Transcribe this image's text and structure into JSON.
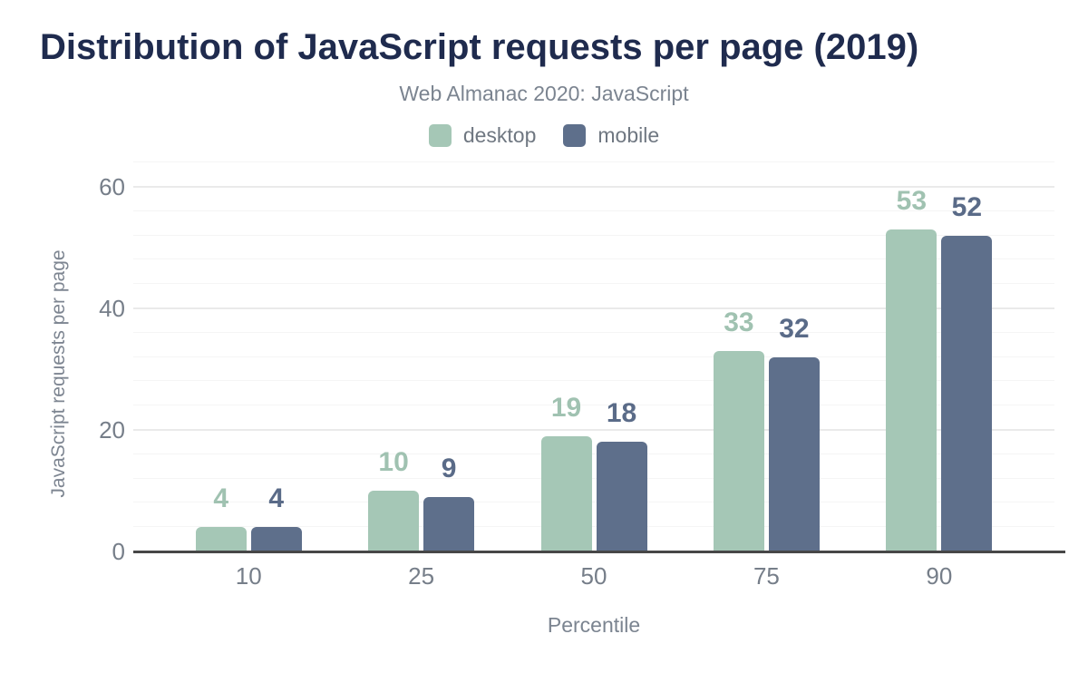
{
  "title": "Distribution of JavaScript requests per page (2019)",
  "subtitle": "Web Almanac 2020: JavaScript",
  "chart_data": {
    "type": "bar",
    "title": "Distribution of JavaScript requests per page (2019)",
    "subtitle": "Web Almanac 2020: JavaScript",
    "categories": [
      "10",
      "25",
      "50",
      "75",
      "90"
    ],
    "series": [
      {
        "name": "desktop",
        "color": "#a5c7b6",
        "label_color": "#a0c2b1",
        "values": [
          4,
          10,
          19,
          33,
          53
        ]
      },
      {
        "name": "mobile",
        "color": "#5e6f8b",
        "label_color": "#5a6b88",
        "values": [
          4,
          9,
          18,
          32,
          52
        ]
      }
    ],
    "xlabel": "Percentile",
    "ylabel": "JavaScript requests per page",
    "ylim": [
      0,
      65
    ],
    "yticks": [
      0,
      20,
      40,
      60
    ],
    "minor_grid_step": 4,
    "grid": true,
    "legend_position": "top"
  },
  "colors": {
    "title_text": "#1f2b4e",
    "subtitle_text": "#7b8490",
    "axis_text": "#767e89",
    "axis_line": "#474747",
    "grid_major": "#eaeaea",
    "grid_minor": "#f5f5f5",
    "background": "#ffffff"
  }
}
